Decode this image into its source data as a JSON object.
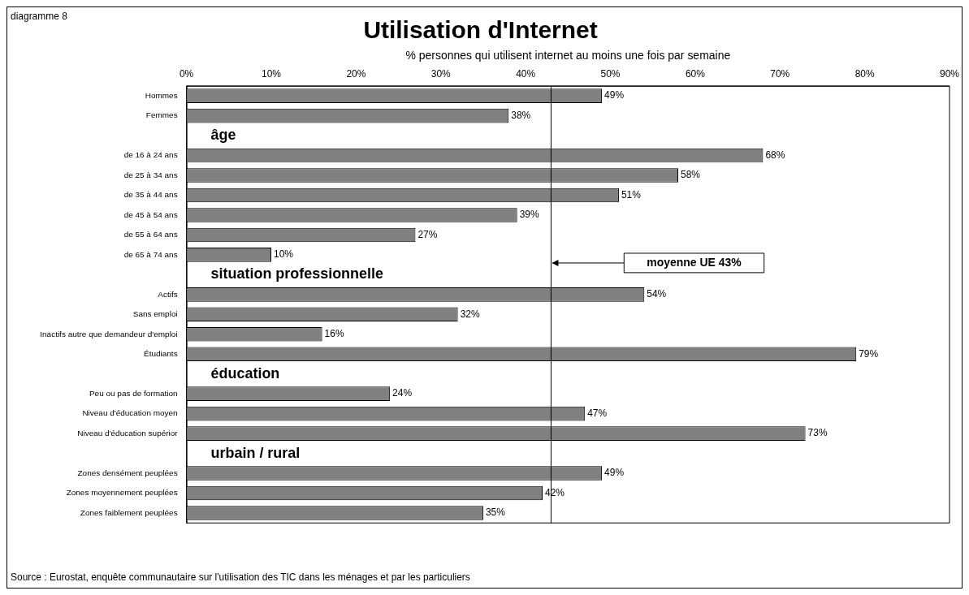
{
  "chart_data": {
    "type": "bar",
    "orientation": "horizontal",
    "title": "Utilisation d'Internet",
    "xlabel": "% personnes qui utilisent internet au moins une fois par semaine",
    "categories": [
      "Hommes",
      "Femmes",
      null,
      "de 16 à 24 ans",
      "de 25 à 34 ans",
      "de 35 à 44 ans",
      "de 45 à 54 ans",
      "de 55 à 64 ans",
      "de 65 à 74 ans",
      null,
      "Actifs",
      "Sans emploi",
      "Inactifs autre que demandeur d'emploi",
      "Étudiants",
      null,
      "Peu ou pas de formation",
      "Niveau d'éducation moyen",
      "Niveau d'éducation supérior",
      null,
      "Zones densément peuplées",
      "Zones moyennement peuplées",
      "Zones faiblement peuplées"
    ],
    "values": [
      49,
      38,
      null,
      68,
      58,
      51,
      39,
      27,
      10,
      null,
      54,
      32,
      16,
      79,
      null,
      24,
      47,
      73,
      null,
      49,
      42,
      35
    ],
    "value_labels": [
      "49%",
      "38%",
      null,
      "68%",
      "58%",
      "51%",
      "39%",
      "27%",
      "10%",
      null,
      "54%",
      "32%",
      "16%",
      "79%",
      null,
      "24%",
      "47%",
      "73%",
      null,
      "49%",
      "42%",
      "35%"
    ],
    "color": "#808080",
    "xlim": [
      0,
      90
    ],
    "xticks": [
      {
        "value": 0,
        "label": "0%"
      },
      {
        "value": 10,
        "label": "10%"
      },
      {
        "value": 20,
        "label": "20%"
      },
      {
        "value": 30,
        "label": "30%"
      },
      {
        "value": 40,
        "label": "40%"
      },
      {
        "value": 50,
        "label": "50%"
      },
      {
        "value": 60,
        "label": "60%"
      },
      {
        "value": 70,
        "label": "70%"
      },
      {
        "value": 80,
        "label": "80%"
      },
      {
        "value": 90,
        "label": "90%"
      }
    ],
    "grid": false,
    "legend": false,
    "ref_lines": [
      {
        "axis": "x",
        "value": 43,
        "label": "moyenne UE 43%",
        "color": "#000000"
      }
    ],
    "annotations": [
      "diagramme 8",
      "âge",
      "situation professionnelle",
      "éducation",
      "urbain / rural",
      "Source : Eurostat, enquête communautaire sur l'utilisation des TIC dans les ménages et par les particuliers"
    ]
  }
}
